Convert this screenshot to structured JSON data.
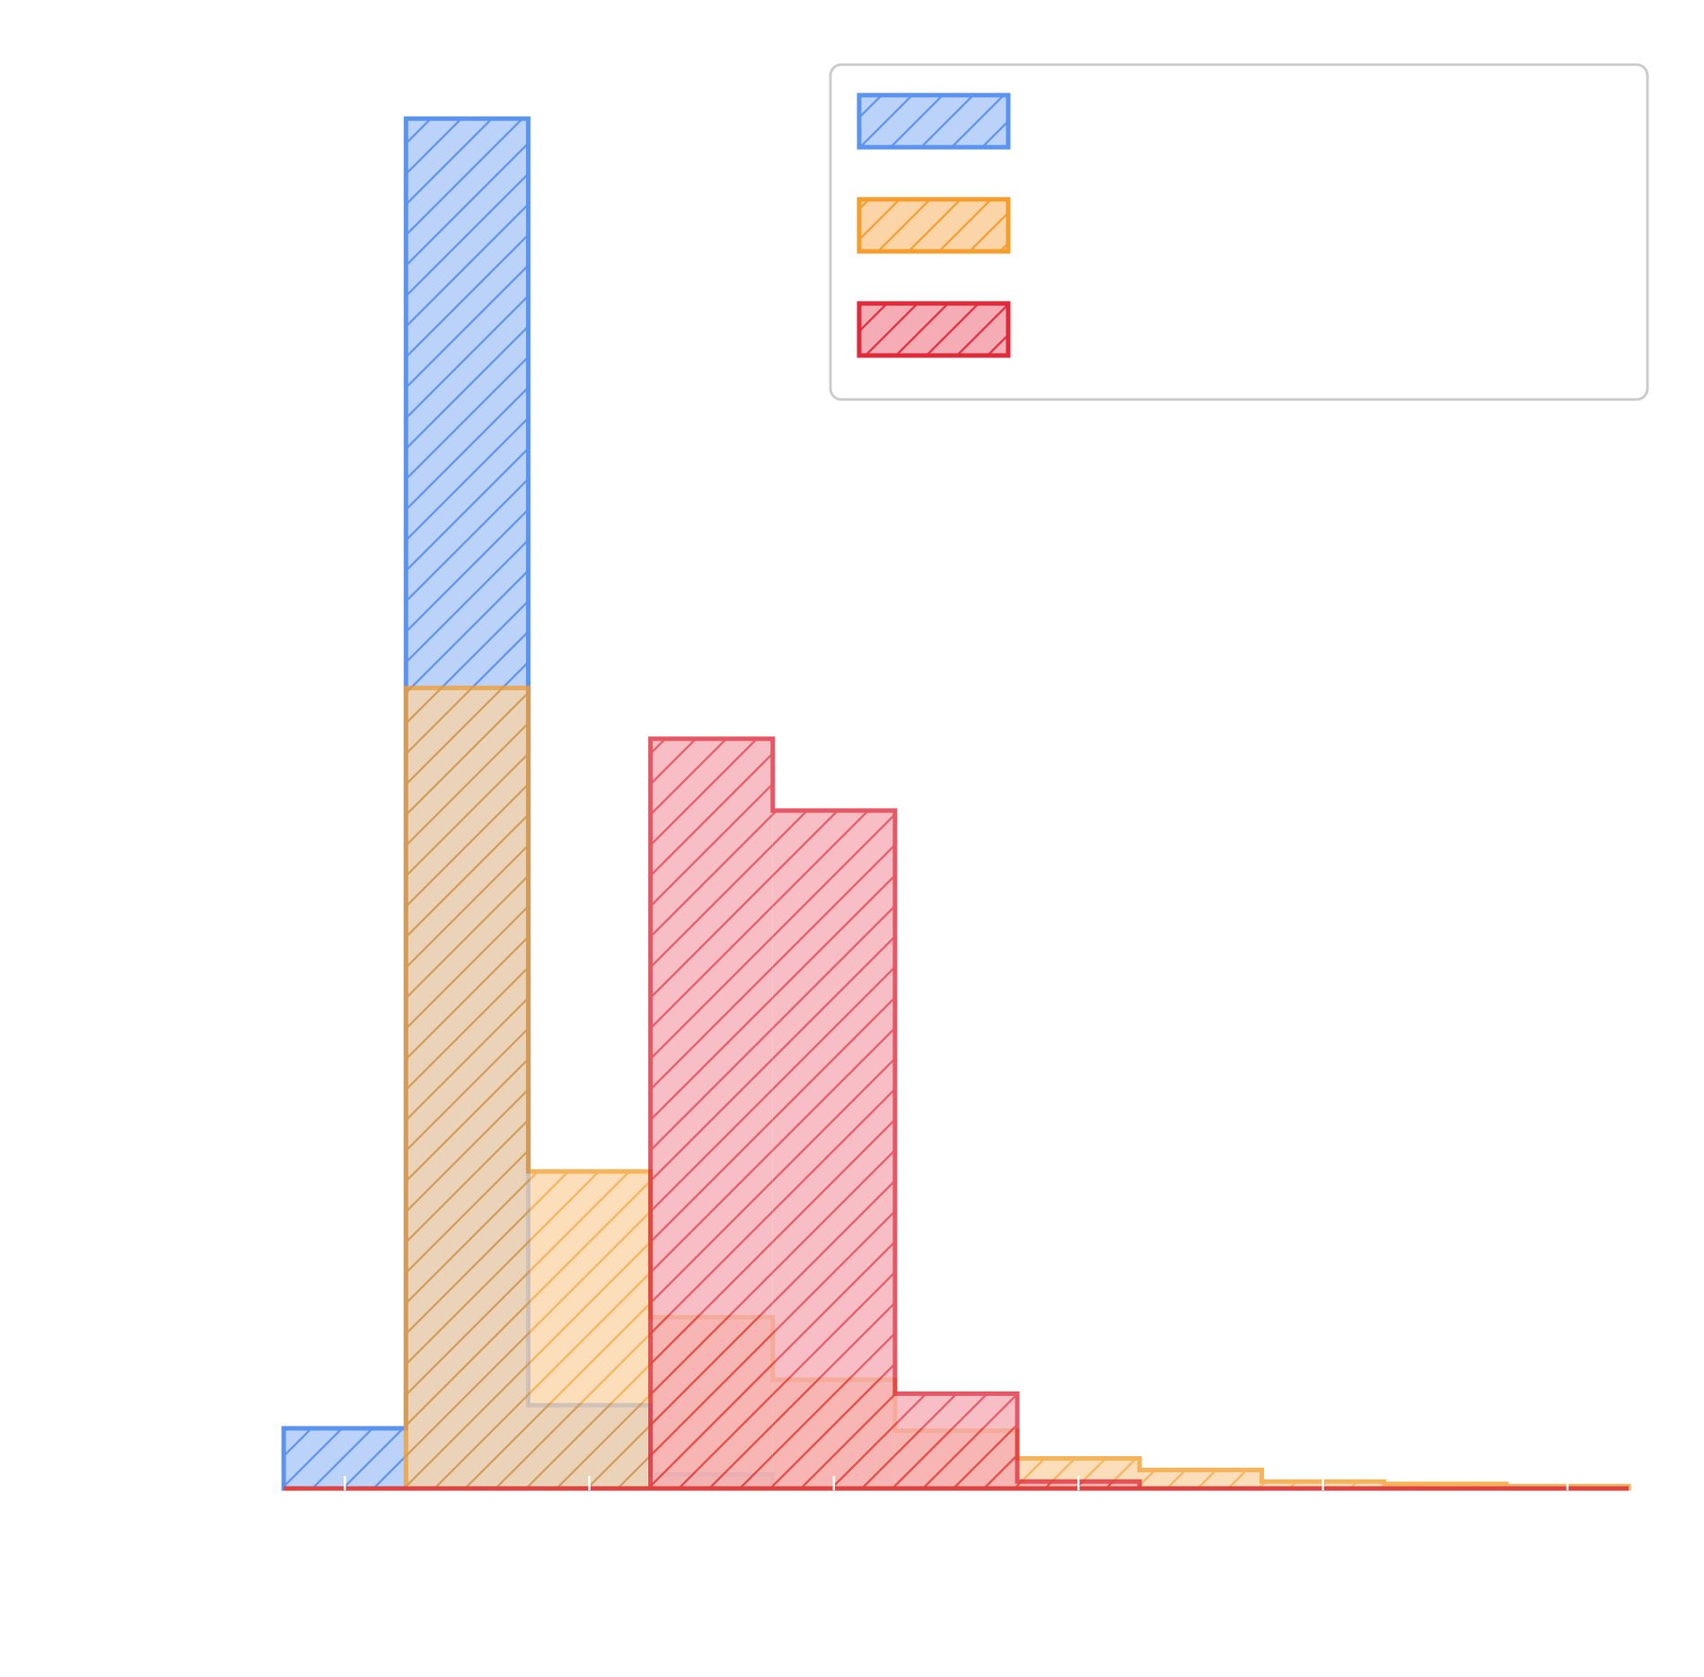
{
  "chart_data": {
    "type": "histogram",
    "title": "",
    "xlabel": "",
    "ylabel": "",
    "bin_edges": [
      0,
      1,
      2,
      3,
      4,
      5,
      6,
      7,
      8,
      9,
      10,
      11
    ],
    "xlim": [
      0,
      11
    ],
    "ylim": [
      0,
      0.62
    ],
    "x_ticks": [
      0.5,
      2.5,
      4.5,
      6.5,
      8.5,
      10.5
    ],
    "grid": false,
    "legend_placement": "top-right",
    "series": [
      {
        "color": "#5b93f0",
        "fill": "#b7cff8",
        "hatch": "diagonal",
        "values": [
          0.026,
          0.592,
          0.036,
          0.006,
          0.0,
          0.0,
          0.0,
          0.0,
          0.0,
          0.0,
          0.0
        ]
      },
      {
        "color": "#f59e2c",
        "fill": "#fad3a2",
        "hatch": "diagonal",
        "values": [
          0.0,
          0.346,
          0.137,
          0.074,
          0.047,
          0.025,
          0.013,
          0.008,
          0.003,
          0.002,
          0.001
        ]
      },
      {
        "color": "#e02a3a",
        "fill": "#f4a7b0",
        "hatch": "diagonal",
        "values": [
          0.0,
          0.0,
          0.0,
          0.324,
          0.293,
          0.041,
          0.003,
          0.0,
          0.0,
          0.0,
          0.0
        ]
      }
    ]
  }
}
